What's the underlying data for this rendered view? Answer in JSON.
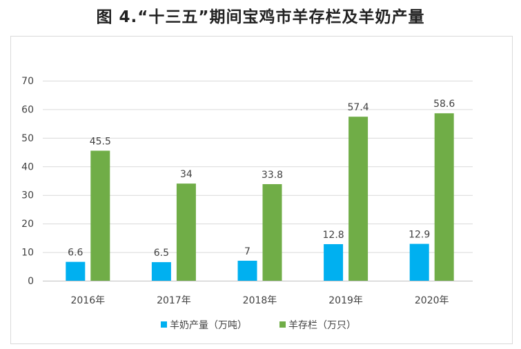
{
  "title": "图 4.“十三五”期间宝鸡市羊存栏及羊奶产量",
  "chart_data": {
    "type": "bar",
    "title": "图 4.“十三五”期间宝鸡市羊存栏及羊奶产量",
    "categories": [
      "2016年",
      "2017年",
      "2018年",
      "2019年",
      "2020年"
    ],
    "series": [
      {
        "name": "羊奶产量（万吨）",
        "color": "#00B0F0",
        "values": [
          6.6,
          6.5,
          7,
          12.8,
          12.9
        ]
      },
      {
        "name": "羊存栏（万只）",
        "color": "#70AD47",
        "values": [
          45.5,
          34,
          33.8,
          57.4,
          58.6
        ]
      }
    ],
    "xlabel": "",
    "ylabel": "",
    "ylim": [
      0,
      70
    ],
    "yticks": [
      0,
      10,
      20,
      30,
      40,
      50,
      60,
      70
    ],
    "grid": true,
    "legend": "bottom"
  }
}
